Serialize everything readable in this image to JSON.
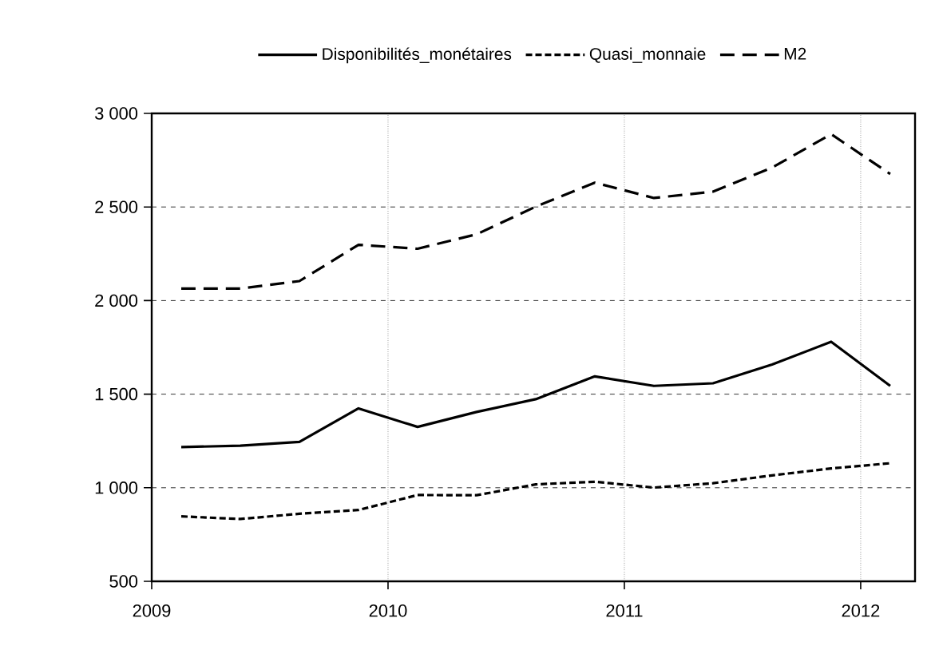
{
  "chart_data": {
    "type": "line",
    "x": [
      2009.125,
      2009.375,
      2009.625,
      2009.875,
      2010.125,
      2010.375,
      2010.625,
      2010.875,
      2011.125,
      2011.375,
      2011.625,
      2011.875,
      2012.125
    ],
    "series": [
      {
        "name": "Disponibilités_monétaires",
        "color": "#000000",
        "line_style": "solid",
        "values": [
          1217,
          1225,
          1245,
          1424,
          1325,
          1405,
          1473,
          1595,
          1544,
          1558,
          1658,
          1780,
          1544
        ]
      },
      {
        "name": "Quasi_monnaie",
        "color": "#000000",
        "line_style": "dotted",
        "values": [
          847,
          833,
          861,
          881,
          961,
          960,
          1018,
          1032,
          1001,
          1024,
          1066,
          1103,
          1131
        ]
      },
      {
        "name": "M2",
        "color": "#000000",
        "line_style": "dashed",
        "values": [
          2064,
          2064,
          2104,
          2298,
          2277,
          2354,
          2502,
          2630,
          2548,
          2582,
          2710,
          2889,
          2676
        ]
      }
    ],
    "xlim": [
      2009,
      2012.23
    ],
    "xticks": [
      2009,
      2010,
      2011,
      2012
    ],
    "ylim": [
      500,
      3000
    ],
    "yticks": [
      {
        "value": 500,
        "label": "500"
      },
      {
        "value": 1000,
        "label": "1 000"
      },
      {
        "value": 1500,
        "label": "1 500"
      },
      {
        "value": 2000,
        "label": "2 000"
      },
      {
        "value": 2500,
        "label": "2 500"
      },
      {
        "value": 3000,
        "label": "3 000"
      }
    ],
    "grid": true,
    "legend": "top"
  }
}
